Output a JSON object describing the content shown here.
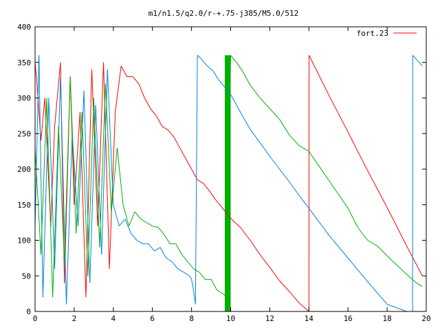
{
  "chart_data": {
    "type": "line",
    "title": "m1/n1.5/q2.0/r-+.75-j385/M5.0/512",
    "xlabel": "",
    "ylabel": "",
    "xlim": [
      0,
      20
    ],
    "ylim": [
      0,
      400
    ],
    "x_ticks": [
      0,
      2,
      4,
      6,
      8,
      10,
      12,
      14,
      16,
      18,
      20
    ],
    "x_tick_labels": [
      "0",
      "2",
      "4",
      "6",
      "8",
      "10",
      "12",
      "14",
      "16",
      "18",
      "20"
    ],
    "y_ticks": [
      0,
      50,
      100,
      150,
      200,
      250,
      300,
      350,
      400
    ],
    "y_tick_labels": [
      "0",
      "50",
      "100",
      "150",
      "200",
      "250",
      "300",
      "350",
      "400"
    ],
    "grid": false,
    "legend": {
      "position": "top-right",
      "entries": [
        "fort.23"
      ]
    },
    "series": [
      {
        "name": "fort.23",
        "color": "#ff0000",
        "wraps_at": 360,
        "x": [
          0.0,
          0.1,
          0.3,
          0.5,
          0.8,
          1.0,
          1.3,
          1.5,
          1.8,
          2.0,
          2.3,
          2.6,
          2.9,
          3.2,
          3.5,
          3.8,
          4.1,
          4.4,
          4.7,
          5.0,
          5.3,
          5.6,
          5.9,
          6.2,
          6.5,
          6.8,
          7.1,
          7.4,
          7.7,
          8.0,
          8.3,
          8.6,
          8.9,
          9.2,
          9.5,
          9.8,
          10.1,
          10.5,
          11.0,
          11.5,
          12.0,
          12.5,
          13.0,
          13.5,
          14.0,
          14.01,
          15.0,
          16.0,
          17.0,
          18.0,
          19.0,
          19.8
        ],
        "y": [
          350,
          320,
          240,
          300,
          120,
          260,
          350,
          40,
          330,
          150,
          280,
          20,
          340,
          120,
          350,
          60,
          280,
          345,
          330,
          330,
          320,
          300,
          285,
          275,
          260,
          255,
          245,
          230,
          215,
          200,
          185,
          180,
          170,
          158,
          148,
          138,
          128,
          118,
          100,
          80,
          62,
          43,
          28,
          12,
          0,
          360,
          305,
          252,
          198,
          146,
          92,
          50
        ]
      },
      {
        "name": "",
        "color": "#0080e0",
        "wraps_at": 360,
        "x": [
          0.0,
          0.2,
          0.4,
          0.7,
          1.0,
          1.3,
          1.6,
          1.9,
          2.2,
          2.5,
          2.8,
          3.1,
          3.4,
          3.7,
          4.0,
          4.3,
          4.6,
          4.9,
          5.2,
          5.5,
          5.8,
          6.1,
          6.4,
          6.7,
          7.0,
          7.3,
          7.6,
          7.9,
          8.0,
          8.1,
          8.2,
          8.3,
          8.5,
          8.8,
          9.1,
          9.4,
          9.7,
          10.0,
          10.3,
          10.6,
          11.0,
          11.5,
          12.0,
          12.5,
          13.0,
          13.5,
          14.0,
          15.0,
          16.0,
          17.0,
          18.0,
          19.0,
          19.3,
          19.31,
          19.8
        ],
        "y": [
          120,
          360,
          20,
          300,
          60,
          330,
          10,
          250,
          120,
          310,
          40,
          290,
          80,
          340,
          150,
          120,
          130,
          110,
          100,
          95,
          95,
          85,
          90,
          75,
          70,
          60,
          55,
          50,
          45,
          30,
          10,
          360,
          355,
          345,
          338,
          325,
          315,
          305,
          290,
          275,
          256,
          237,
          218,
          200,
          182,
          163,
          145,
          108,
          75,
          42,
          10,
          0,
          0,
          360,
          345
        ]
      },
      {
        "name": "",
        "color": "#00b000",
        "wraps_at": 360,
        "x": [
          0.0,
          0.3,
          0.6,
          0.9,
          1.2,
          1.5,
          1.8,
          2.1,
          2.4,
          2.7,
          3.0,
          3.3,
          3.6,
          3.9,
          4.2,
          4.5,
          4.8,
          5.1,
          5.4,
          5.7,
          6.0,
          6.3,
          6.6,
          6.9,
          7.2,
          7.5,
          7.8,
          8.1,
          8.4,
          8.7,
          9.0,
          9.3,
          9.6,
          9.8,
          10.0,
          10.3,
          10.6,
          11.0,
          11.5,
          12.0,
          12.5,
          13.0,
          13.5,
          14.0,
          14.5,
          15.0,
          15.5,
          16.0,
          16.5,
          17.0,
          17.5,
          18.0,
          18.5,
          19.0,
          19.5,
          19.8
        ],
        "y": [
          230,
          80,
          300,
          20,
          260,
          70,
          330,
          110,
          280,
          50,
          300,
          90,
          320,
          140,
          230,
          150,
          120,
          140,
          130,
          125,
          120,
          118,
          108,
          95,
          95,
          80,
          70,
          60,
          55,
          45,
          45,
          30,
          25,
          20,
          360,
          350,
          338,
          318,
          300,
          285,
          270,
          248,
          233,
          225,
          205,
          185,
          165,
          145,
          118,
          100,
          92,
          78,
          65,
          52,
          40,
          35
        ]
      }
    ],
    "dense_band": {
      "x_from": 9.7,
      "x_to": 10.0,
      "y_from": 0,
      "y_to": 360,
      "color": "#00b000"
    }
  }
}
